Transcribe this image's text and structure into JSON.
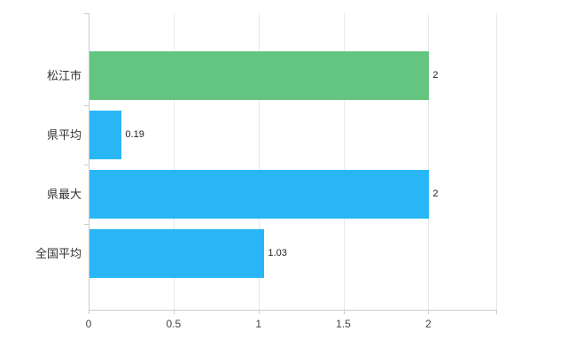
{
  "chart_data": {
    "type": "bar",
    "orientation": "horizontal",
    "title": "",
    "xlabel": "",
    "ylabel": "",
    "categories": [
      "松江市",
      "県平均",
      "県最大",
      "全国平均"
    ],
    "values": [
      2,
      0.19,
      2,
      1.03
    ],
    "value_labels": [
      "2",
      "0.19",
      "2",
      "1.03"
    ],
    "bar_colors": [
      "#63c57f",
      "#29b6f6",
      "#29b6f6",
      "#29b6f6"
    ],
    "xlim": [
      0,
      2.4
    ],
    "x_ticks": [
      0,
      0.5,
      1,
      1.5,
      2
    ],
    "x_tick_labels": [
      "0",
      "0.5",
      "1",
      "1.5",
      "2"
    ],
    "grid": true,
    "legend": "none",
    "colors": {
      "axis": "#cccccc",
      "gridline": "#e8e8e8",
      "category_text": "#333333",
      "value_text": "#222222",
      "tick_text": "#444444",
      "background": "#ffffff"
    }
  }
}
